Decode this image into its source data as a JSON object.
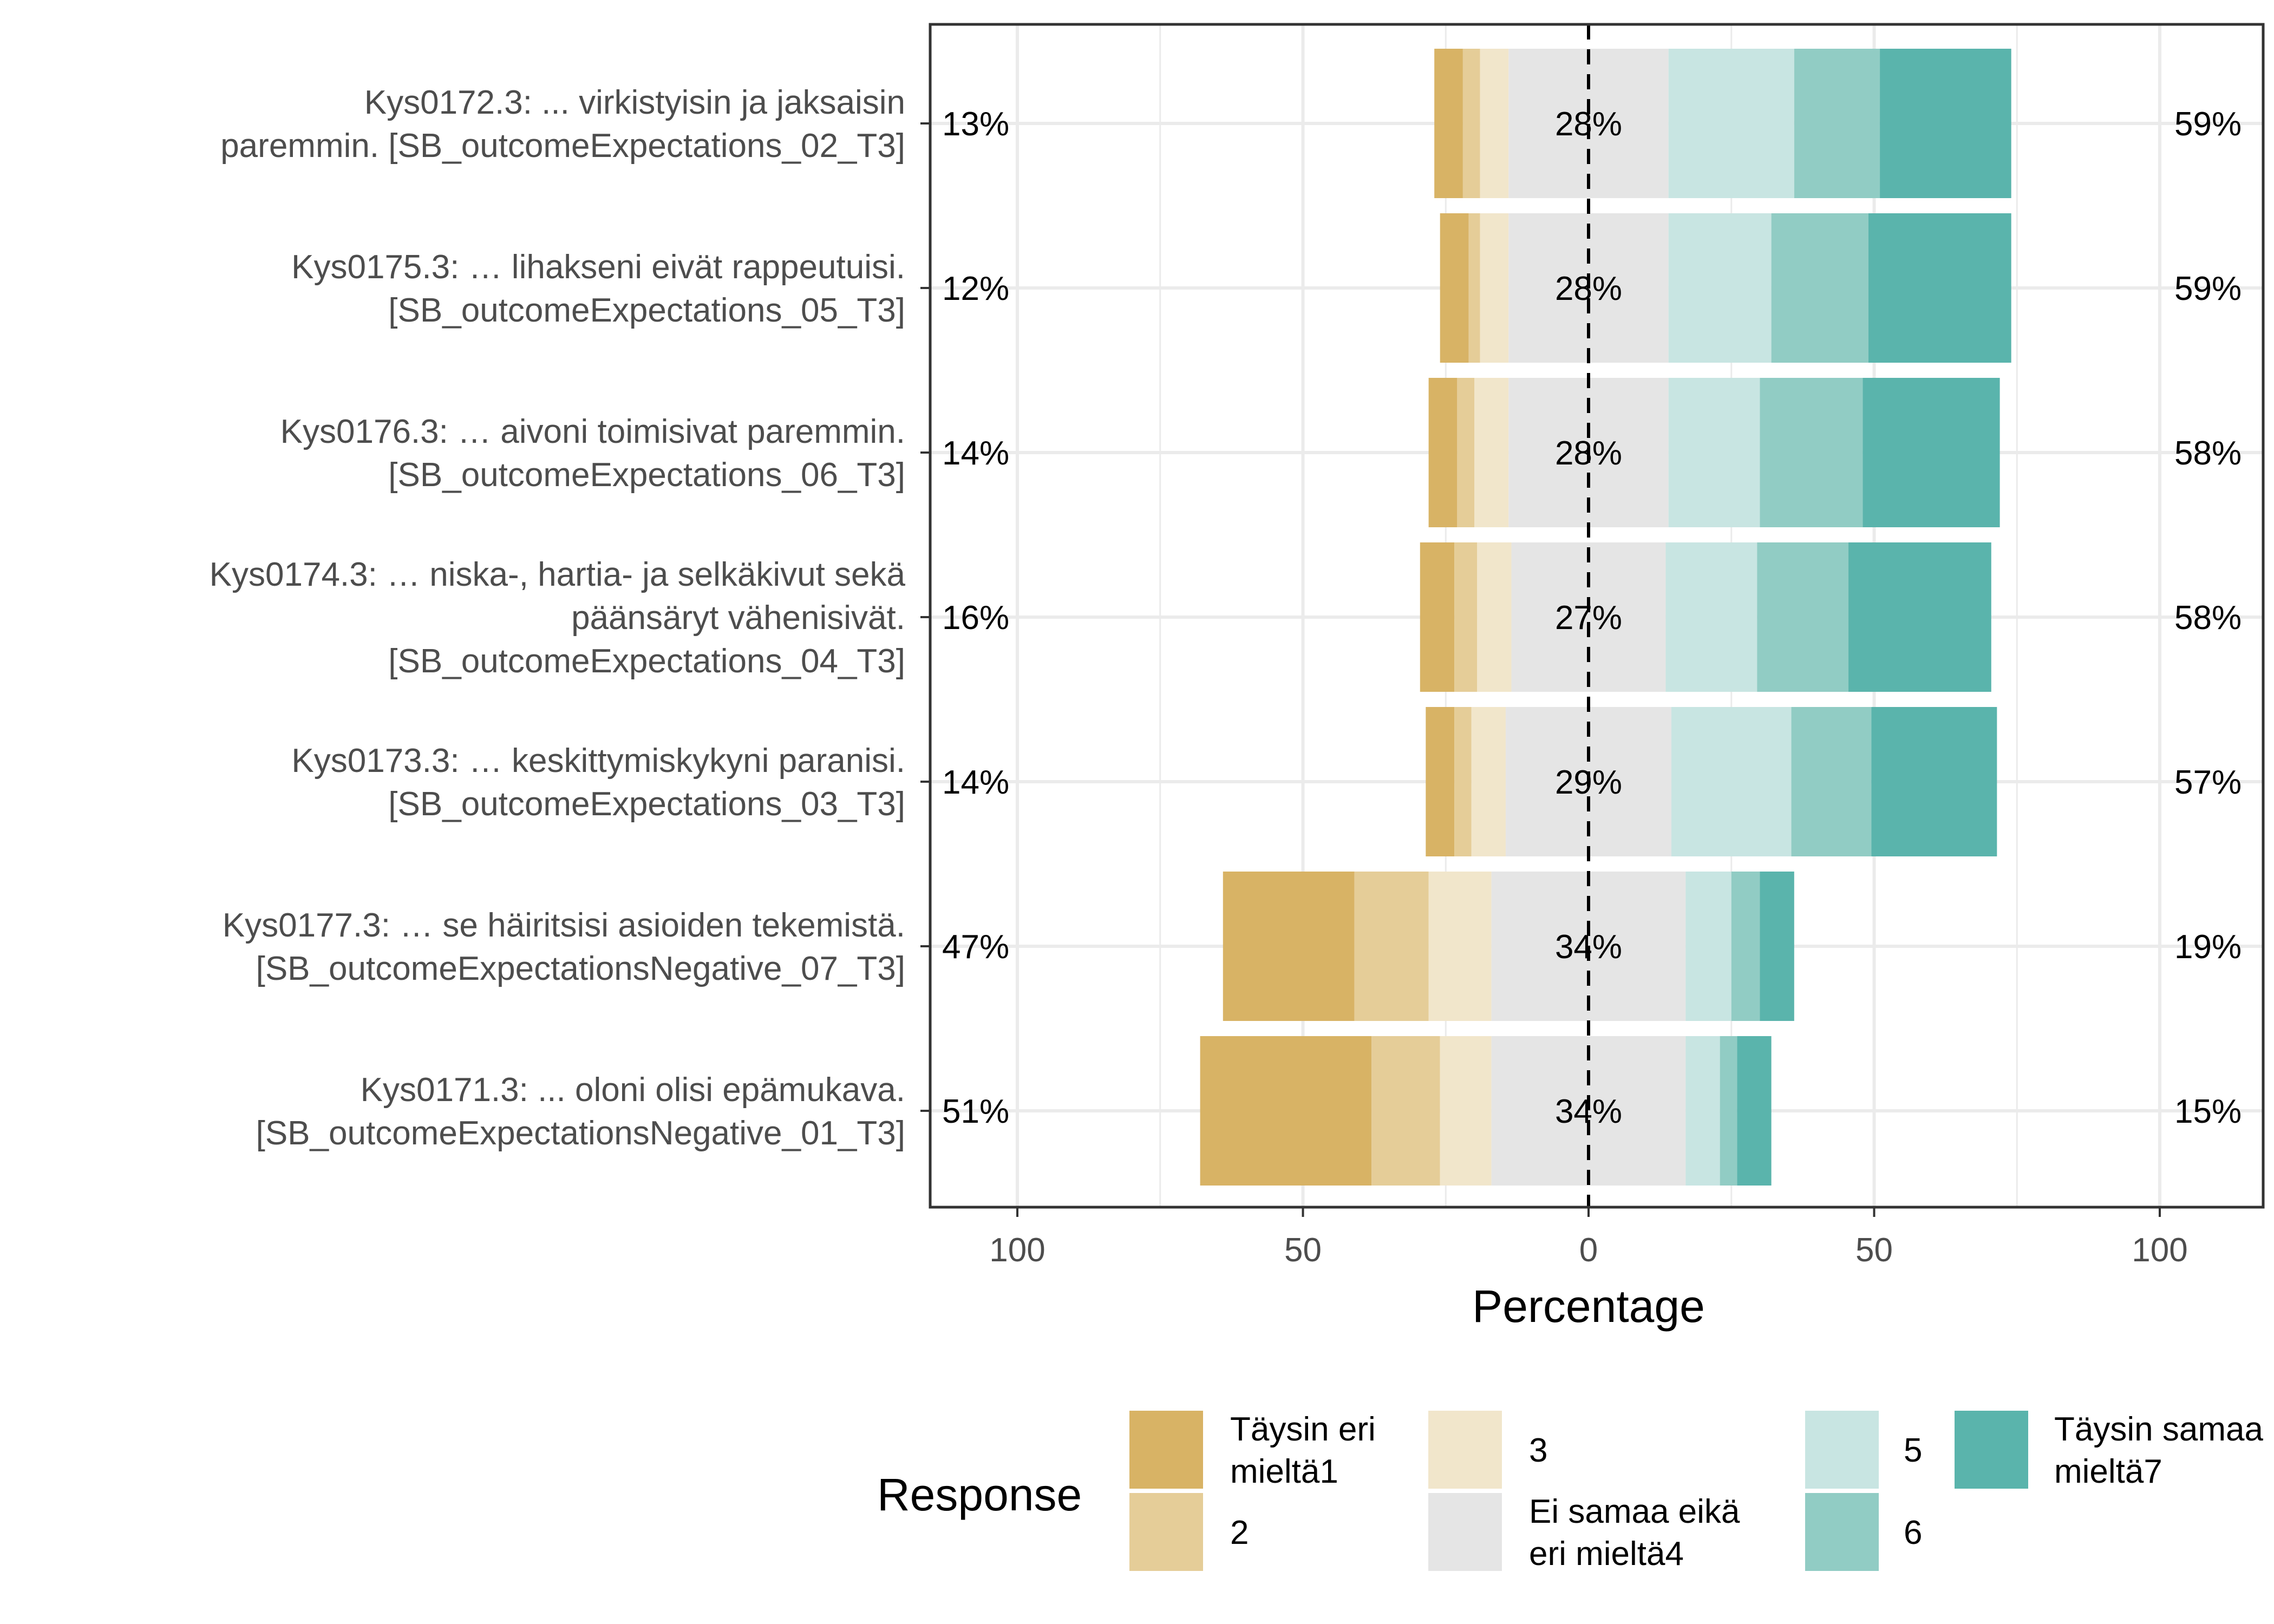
{
  "chart_data": {
    "type": "bar",
    "orientation": "horizontal-diverging",
    "xlabel": "Percentage",
    "xlim": [
      -100,
      100
    ],
    "xticks": [
      {
        "value": -100,
        "label": "100"
      },
      {
        "value": -50,
        "label": "50"
      },
      {
        "value": 0,
        "label": "0"
      },
      {
        "value": 50,
        "label": "50"
      },
      {
        "value": 100,
        "label": "100"
      }
    ],
    "grid": true,
    "center_line": "dashed",
    "legend": {
      "title": "Response",
      "placement": "bottom",
      "entries": [
        {
          "label": [
            "Täysin eri",
            "mieltä1"
          ],
          "color": "#D8B365"
        },
        {
          "label": [
            "2"
          ],
          "color": "#E5CD98"
        },
        {
          "label": [
            "3"
          ],
          "color": "#F1E6CB"
        },
        {
          "label": [
            "Ei samaa eikä",
            "eri mieltä4"
          ],
          "color": "#E5E5E5"
        },
        {
          "label": [
            "5"
          ],
          "color": "#C8E5E2"
        },
        {
          "label": [
            "6"
          ],
          "color": "#91CCC4"
        },
        {
          "label": [
            "Täysin samaa",
            "mieltä7"
          ],
          "color": "#5AB4AC"
        }
      ]
    },
    "items": [
      {
        "label": [
          "Kys0172.3: ... virkistyisin ja jaksaisin",
          "paremmin. [SB_outcomeExpectations_02_T3]"
        ],
        "low_label": "13%",
        "neutral_label": "28%",
        "high_label": "59%",
        "values": [
          5,
          3,
          5,
          28,
          22,
          15,
          23
        ]
      },
      {
        "label": [
          "Kys0175.3: … lihakseni eivät rappeutuisi.",
          "[SB_outcomeExpectations_05_T3]"
        ],
        "low_label": "12%",
        "neutral_label": "28%",
        "high_label": "59%",
        "values": [
          5,
          2,
          5,
          28,
          18,
          17,
          25
        ]
      },
      {
        "label": [
          "Kys0176.3: … aivoni toimisivat paremmin.",
          "[SB_outcomeExpectations_06_T3]"
        ],
        "low_label": "14%",
        "neutral_label": "28%",
        "high_label": "58%",
        "values": [
          5,
          3,
          6,
          28,
          16,
          18,
          24
        ]
      },
      {
        "label": [
          "Kys0174.3: … niska-, hartia- ja selkäkivut sekä",
          "päänsäryt vähenisivät.",
          "[SB_outcomeExpectations_04_T3]"
        ],
        "low_label": "16%",
        "neutral_label": "27%",
        "high_label": "58%",
        "values": [
          6,
          4,
          6,
          27,
          16,
          16,
          25
        ]
      },
      {
        "label": [
          "Kys0173.3: … keskittymiskykyni paranisi.",
          "[SB_outcomeExpectations_03_T3]"
        ],
        "low_label": "14%",
        "neutral_label": "29%",
        "high_label": "57%",
        "values": [
          5,
          3,
          6,
          29,
          21,
          14,
          22
        ]
      },
      {
        "label": [
          "Kys0177.3: … se häiritsisi asioiden tekemistä.",
          "[SB_outcomeExpectationsNegative_07_T3]"
        ],
        "low_label": "47%",
        "neutral_label": "34%",
        "high_label": "19%",
        "values": [
          23,
          13,
          11,
          34,
          8,
          5,
          6
        ]
      },
      {
        "label": [
          "Kys0171.3: ... oloni olisi epämukava.",
          "[SB_outcomeExpectationsNegative_01_T3]"
        ],
        "low_label": "51%",
        "neutral_label": "34%",
        "high_label": "15%",
        "values": [
          30,
          12,
          9,
          34,
          6,
          3,
          6
        ]
      }
    ]
  }
}
